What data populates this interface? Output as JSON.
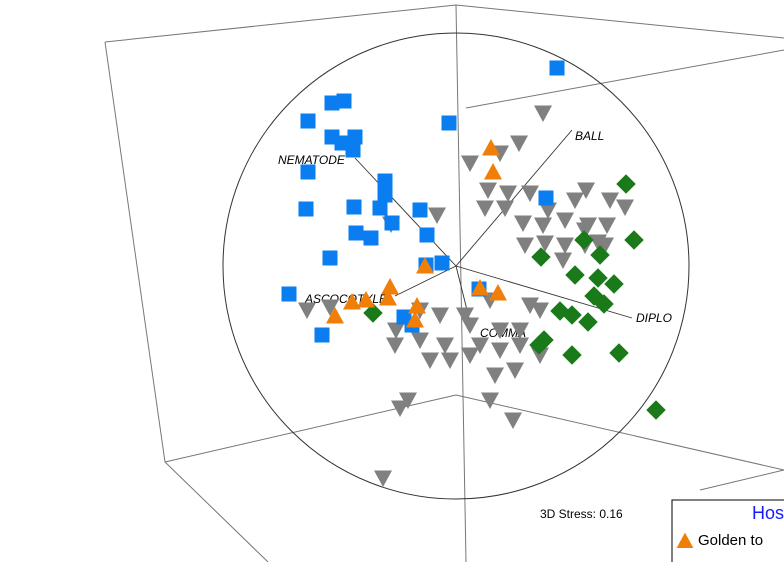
{
  "chart_data": {
    "type": "scatter",
    "xlim": [
      -233,
      233
    ],
    "ylim": [
      -233,
      233
    ],
    "annotations": [
      "NEMATODE",
      "BALL",
      "DIPLO",
      "COMMA",
      "ASCOCOTYLE"
    ],
    "stress_label": "3D Stress: 0.16",
    "legend_title": "Hos",
    "series": [
      {
        "name": "Golden to",
        "color": "#f07f09",
        "marker": "triangle-up",
        "x": [
          35,
          37,
          -66,
          -31,
          -39,
          -41,
          -121,
          -104,
          42,
          24,
          -90,
          -68
        ],
        "y": [
          118,
          94,
          -21,
          0,
          -40,
          -54,
          -50,
          -36,
          -27,
          -22,
          -34,
          -32
        ]
      },
      {
        "color": "#0a7ef0",
        "marker": "square",
        "x": [
          101,
          -112,
          -124,
          -148,
          -7,
          -124,
          -101,
          -114,
          -103,
          -148,
          -71,
          -71,
          -150,
          -102,
          -76,
          -36,
          -100,
          -85,
          -29,
          -64,
          -126,
          -14,
          -167,
          -52,
          -44,
          -134,
          23,
          90,
          -30
        ],
        "y": [
          198,
          165,
          163,
          145,
          143,
          129,
          129,
          123,
          116,
          94,
          85,
          71,
          57,
          59,
          58,
          56,
          33,
          28,
          31,
          43,
          8,
          3,
          -28,
          -51,
          -59,
          -69,
          -23,
          68,
          1
        ]
      },
      {
        "color": "#1a7a1a",
        "marker": "diamond",
        "x": [
          170,
          178,
          144,
          85,
          142,
          158,
          138,
          148,
          119,
          104,
          116,
          132,
          83,
          116,
          163,
          200,
          -83,
          128,
          88
        ],
        "y": [
          82,
          26,
          11,
          9,
          -12,
          -18,
          -30,
          -38,
          -9,
          -45,
          -49,
          -56,
          -79,
          -89,
          -87,
          -144,
          -47,
          26,
          -74
        ]
      },
      {
        "color": "#808080",
        "marker": "triangle-down",
        "x": [
          87,
          63,
          44,
          14,
          32,
          52,
          74,
          29,
          49,
          92,
          130,
          154,
          169,
          67,
          87,
          109,
          132,
          151,
          69,
          89,
          109,
          129,
          149,
          107,
          -19,
          -65,
          -149,
          -126,
          -60,
          -36,
          -16,
          -61,
          -36,
          -11,
          9,
          -6,
          14,
          24,
          44,
          64,
          84,
          39,
          59,
          44,
          64,
          84,
          74,
          34,
          14,
          -26,
          -48,
          -56,
          34,
          57,
          -73,
          129,
          119,
          142
        ],
        "y": [
          153,
          123,
          113,
          103,
          76,
          73,
          73,
          58,
          58,
          56,
          76,
          66,
          59,
          43,
          41,
          46,
          41,
          41,
          21,
          23,
          21,
          21,
          21,
          6,
          51,
          42,
          -44,
          -41,
          -64,
          -44,
          -49,
          -79,
          -74,
          -79,
          -49,
          -94,
          -89,
          -79,
          -84,
          -79,
          -89,
          -109,
          -104,
          -64,
          -64,
          -44,
          -39,
          -34,
          -59,
          -94,
          -134,
          -142,
          -134,
          -154,
          -212,
          36,
          66,
          24
        ]
      }
    ]
  }
}
